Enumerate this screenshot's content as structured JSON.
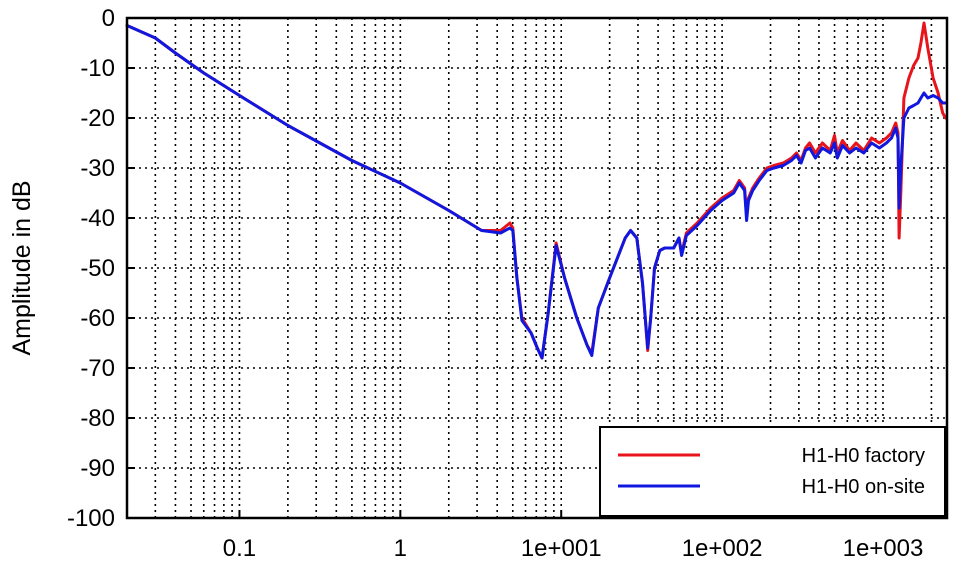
{
  "chart_data": {
    "type": "line",
    "title": "",
    "xlabel": "",
    "ylabel": "Amplitude in dB",
    "x_scale": "log",
    "xlim": [
      0.02,
      2500
    ],
    "ylim": [
      -100,
      0
    ],
    "grid": true,
    "legend_position": "bottom-right",
    "x_ticks": [
      {
        "value": 0.1,
        "label": "0.1"
      },
      {
        "value": 1,
        "label": "1"
      },
      {
        "value": 10,
        "label": "1e+001"
      },
      {
        "value": 100,
        "label": "1e+002"
      },
      {
        "value": 1000,
        "label": "1e+003"
      }
    ],
    "y_ticks": [
      {
        "value": 0,
        "label": "0"
      },
      {
        "value": -10,
        "label": "-10"
      },
      {
        "value": -20,
        "label": "-20"
      },
      {
        "value": -30,
        "label": "-30"
      },
      {
        "value": -40,
        "label": "-40"
      },
      {
        "value": -50,
        "label": "-50"
      },
      {
        "value": -60,
        "label": "-60"
      },
      {
        "value": -70,
        "label": "-70"
      },
      {
        "value": -80,
        "label": "-80"
      },
      {
        "value": -90,
        "label": "-90"
      },
      {
        "value": -100,
        "label": "-100"
      }
    ],
    "series": [
      {
        "name": "H1-H0 factory",
        "color": "#e8141c",
        "points": [
          [
            0.02,
            -1.5
          ],
          [
            0.03,
            -4
          ],
          [
            0.04,
            -7
          ],
          [
            0.06,
            -11
          ],
          [
            0.1,
            -15.5
          ],
          [
            0.2,
            -21.5
          ],
          [
            0.5,
            -28.5
          ],
          [
            1,
            -33
          ],
          [
            2,
            -38.5
          ],
          [
            3.2,
            -42.5
          ],
          [
            4.2,
            -42.5
          ],
          [
            4.8,
            -41
          ],
          [
            5.0,
            -42
          ],
          [
            5.3,
            -52
          ],
          [
            5.7,
            -60
          ],
          [
            6.5,
            -63
          ],
          [
            7.1,
            -66
          ],
          [
            7.6,
            -68
          ],
          [
            8.3,
            -59
          ],
          [
            9.3,
            -45
          ],
          [
            10.5,
            -52
          ],
          [
            12.5,
            -60
          ],
          [
            14.5,
            -65.5
          ],
          [
            15.5,
            -67
          ],
          [
            17,
            -58
          ],
          [
            20,
            -52
          ],
          [
            25,
            -44
          ],
          [
            27,
            -42.5
          ],
          [
            29.5,
            -44
          ],
          [
            32,
            -53
          ],
          [
            34.5,
            -66.5
          ],
          [
            36,
            -60
          ],
          [
            38,
            -50
          ],
          [
            41,
            -46.5
          ],
          [
            44,
            -46
          ],
          [
            50,
            -46
          ],
          [
            54,
            -44
          ],
          [
            56,
            -47
          ],
          [
            60,
            -43
          ],
          [
            70,
            -41
          ],
          [
            85,
            -38
          ],
          [
            100,
            -36
          ],
          [
            118,
            -34.5
          ],
          [
            128,
            -32.5
          ],
          [
            138,
            -34
          ],
          [
            142,
            -39.5
          ],
          [
            146,
            -36
          ],
          [
            155,
            -34
          ],
          [
            170,
            -32
          ],
          [
            190,
            -30
          ],
          [
            210,
            -29.5
          ],
          [
            240,
            -29
          ],
          [
            270,
            -28
          ],
          [
            290,
            -27
          ],
          [
            310,
            -28.5
          ],
          [
            330,
            -26
          ],
          [
            350,
            -25
          ],
          [
            380,
            -27
          ],
          [
            420,
            -25
          ],
          [
            470,
            -26.5
          ],
          [
            500,
            -23.5
          ],
          [
            520,
            -27
          ],
          [
            560,
            -24.5
          ],
          [
            620,
            -26.5
          ],
          [
            680,
            -25
          ],
          [
            760,
            -26.5
          ],
          [
            850,
            -24
          ],
          [
            950,
            -25
          ],
          [
            1050,
            -24
          ],
          [
            1130,
            -23
          ],
          [
            1200,
            -21
          ],
          [
            1240,
            -23
          ],
          [
            1260,
            -44
          ],
          [
            1290,
            -35
          ],
          [
            1350,
            -16
          ],
          [
            1450,
            -12
          ],
          [
            1550,
            -9.5
          ],
          [
            1650,
            -8
          ],
          [
            1720,
            -5
          ],
          [
            1800,
            -1
          ],
          [
            1900,
            -6
          ],
          [
            2050,
            -12
          ],
          [
            2200,
            -15
          ],
          [
            2350,
            -19
          ],
          [
            2450,
            -20
          ]
        ]
      },
      {
        "name": "H1-H0 on-site",
        "color": "#1018e0",
        "points": [
          [
            0.02,
            -1.5
          ],
          [
            0.03,
            -4
          ],
          [
            0.04,
            -7
          ],
          [
            0.06,
            -11
          ],
          [
            0.1,
            -15.5
          ],
          [
            0.2,
            -21.5
          ],
          [
            0.5,
            -28.5
          ],
          [
            1,
            -33
          ],
          [
            2,
            -38.5
          ],
          [
            3.2,
            -42.5
          ],
          [
            4.2,
            -43
          ],
          [
            4.8,
            -42
          ],
          [
            5.0,
            -42.5
          ],
          [
            5.3,
            -52
          ],
          [
            5.7,
            -60.5
          ],
          [
            6.5,
            -63
          ],
          [
            7.1,
            -66
          ],
          [
            7.6,
            -68
          ],
          [
            8.3,
            -59
          ],
          [
            9.3,
            -45.5
          ],
          [
            10.5,
            -52
          ],
          [
            12.5,
            -60
          ],
          [
            14.5,
            -65.5
          ],
          [
            15.5,
            -67.5
          ],
          [
            17,
            -58
          ],
          [
            20,
            -52
          ],
          [
            25,
            -44
          ],
          [
            27,
            -42.5
          ],
          [
            29.5,
            -44
          ],
          [
            32,
            -53
          ],
          [
            34.5,
            -66
          ],
          [
            36,
            -60
          ],
          [
            38,
            -50
          ],
          [
            41,
            -46.5
          ],
          [
            44,
            -46
          ],
          [
            50,
            -46
          ],
          [
            54,
            -44
          ],
          [
            56,
            -47.5
          ],
          [
            60,
            -43.5
          ],
          [
            70,
            -41.5
          ],
          [
            85,
            -38.5
          ],
          [
            100,
            -36.5
          ],
          [
            118,
            -35
          ],
          [
            128,
            -33
          ],
          [
            138,
            -34.5
          ],
          [
            142,
            -40.5
          ],
          [
            146,
            -36.5
          ],
          [
            155,
            -34.5
          ],
          [
            170,
            -32.5
          ],
          [
            190,
            -30.5
          ],
          [
            210,
            -30
          ],
          [
            240,
            -29.5
          ],
          [
            270,
            -28.5
          ],
          [
            290,
            -27.5
          ],
          [
            310,
            -29
          ],
          [
            330,
            -26.5
          ],
          [
            350,
            -26
          ],
          [
            380,
            -28
          ],
          [
            420,
            -26
          ],
          [
            470,
            -27
          ],
          [
            500,
            -25
          ],
          [
            520,
            -28
          ],
          [
            560,
            -25.5
          ],
          [
            620,
            -27
          ],
          [
            680,
            -26
          ],
          [
            760,
            -27
          ],
          [
            850,
            -25
          ],
          [
            950,
            -26
          ],
          [
            1050,
            -25
          ],
          [
            1130,
            -24
          ],
          [
            1200,
            -22
          ],
          [
            1240,
            -24
          ],
          [
            1260,
            -38
          ],
          [
            1290,
            -30
          ],
          [
            1350,
            -20
          ],
          [
            1450,
            -18
          ],
          [
            1550,
            -17.5
          ],
          [
            1650,
            -17
          ],
          [
            1720,
            -16
          ],
          [
            1800,
            -15
          ],
          [
            1900,
            -16
          ],
          [
            2050,
            -15.5
          ],
          [
            2200,
            -16
          ],
          [
            2350,
            -17
          ],
          [
            2450,
            -17
          ]
        ]
      }
    ]
  }
}
